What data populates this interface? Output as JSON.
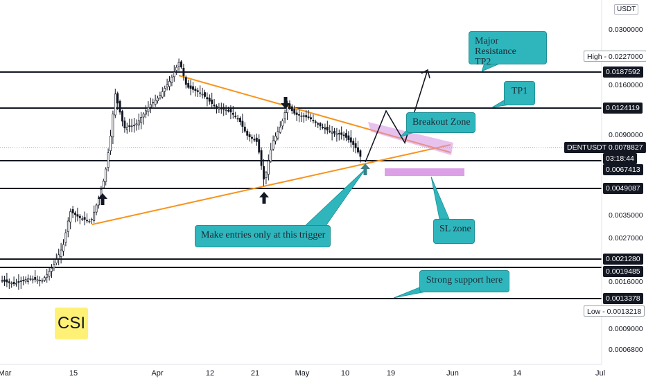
{
  "chart_data": {
    "type": "candlestick",
    "symbol": "DENTUSDT",
    "currency": "USDT",
    "x_ticks": [
      "Mar",
      "15",
      "Apr",
      "12",
      "21",
      "May",
      "10",
      "19",
      "Jun",
      "14",
      "Jul"
    ],
    "y_ticks": [
      "0.0300000",
      "0.0160000",
      "0.0090000",
      "0.0035000",
      "0.0027000",
      "0.0016000",
      "0.0009000",
      "0.0006800"
    ],
    "price_levels": [
      {
        "label": "High",
        "value": "0.0227000",
        "style": "light"
      },
      {
        "label": "",
        "value": "0.0187592",
        "style": "dark"
      },
      {
        "label": "",
        "value": "0.0124119",
        "style": "dark"
      },
      {
        "label": "DENTUSDT",
        "value": "0.0078827",
        "style": "dark"
      },
      {
        "label": "",
        "value": "03:18:44",
        "style": "dark"
      },
      {
        "label": "",
        "value": "0.0067413",
        "style": "dark"
      },
      {
        "label": "",
        "value": "0.0049087",
        "style": "dark"
      },
      {
        "label": "",
        "value": "0.0021280",
        "style": "dark"
      },
      {
        "label": "",
        "value": "0.0019485",
        "style": "dark"
      },
      {
        "label": "",
        "value": "0.0013378",
        "style": "dark"
      },
      {
        "label": "Low",
        "value": "0.0013218",
        "style": "light"
      }
    ],
    "annotations": [
      "Major Resistance\nTP2",
      "TP1",
      "Breakout Zone",
      "Make entries only at this trigger",
      "SL zone",
      "Strong support here"
    ],
    "badge": "CSI",
    "colors": {
      "candle": "#131722",
      "trendline": "#f7941d",
      "zone": "#d58fe0",
      "callout": "#2fb6bd",
      "level": "#131722",
      "arrow_teal": "#3d7f86"
    }
  }
}
